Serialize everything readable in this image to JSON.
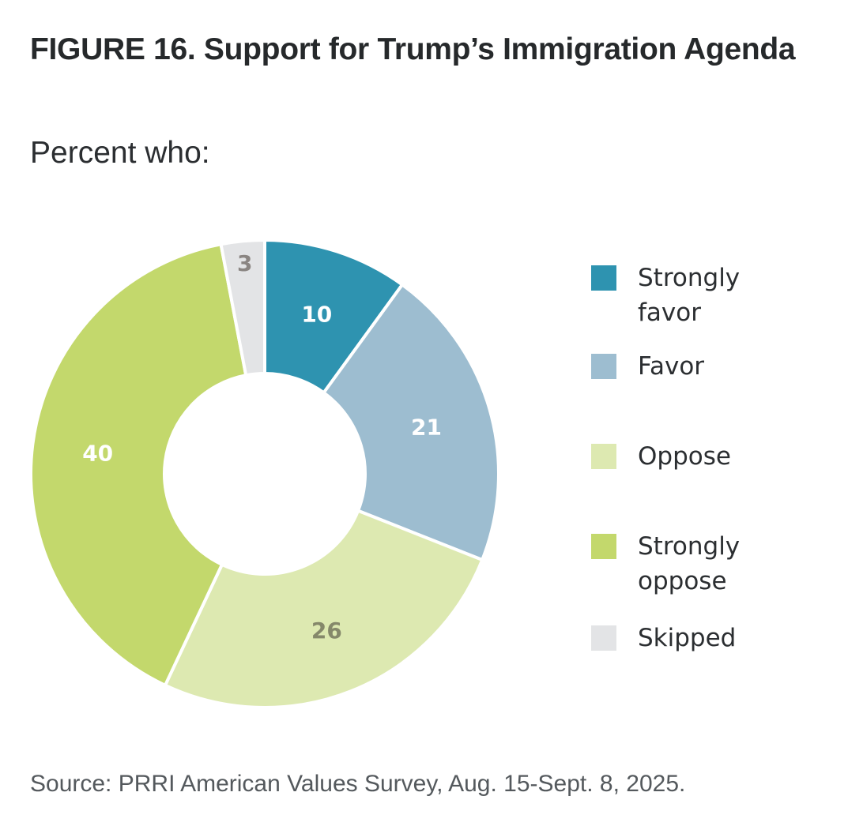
{
  "header": {
    "title": "FIGURE 16.  Support for Trump’s Immigration Agenda",
    "subtitle": "Percent who:"
  },
  "footer": {
    "source": "Source: PRRI American Values Survey, Aug. 15-Sept. 8, 2025."
  },
  "chart_data": {
    "type": "pie",
    "variant": "donut",
    "title": "FIGURE 16.  Support for Trump’s Immigration Agenda",
    "subtitle": "Percent who:",
    "start": "12 o'clock",
    "direction": "clockwise",
    "legend_position": "right",
    "slices": [
      {
        "name": "Strongly favor",
        "value": 10,
        "label": "10",
        "color": "#2e93b0",
        "label_color": "#ffffff"
      },
      {
        "name": "Favor",
        "value": 21,
        "label": "21",
        "color": "#9dbdd0",
        "label_color": "#ffffff"
      },
      {
        "name": "Oppose",
        "value": 26,
        "label": "26",
        "color": "#dde9b1",
        "label_color": "#85886a"
      },
      {
        "name": "Strongly oppose",
        "value": 40,
        "label": "40",
        "color": "#c3d86c",
        "label_color": "#ffffff"
      },
      {
        "name": "Skipped",
        "value": 3,
        "label": "3",
        "color": "#e3e4e6",
        "label_color": "#8a8582"
      }
    ]
  },
  "legend": {
    "items": [
      {
        "label": "Strongly favor",
        "color": "#2e93b0"
      },
      {
        "label": "Favor",
        "color": "#9dbdd0"
      },
      {
        "label": "Oppose",
        "color": "#dde9b1"
      },
      {
        "label": "Strongly oppose",
        "color": "#c3d86c"
      },
      {
        "label": "Skipped",
        "color": "#e3e4e6"
      }
    ]
  }
}
